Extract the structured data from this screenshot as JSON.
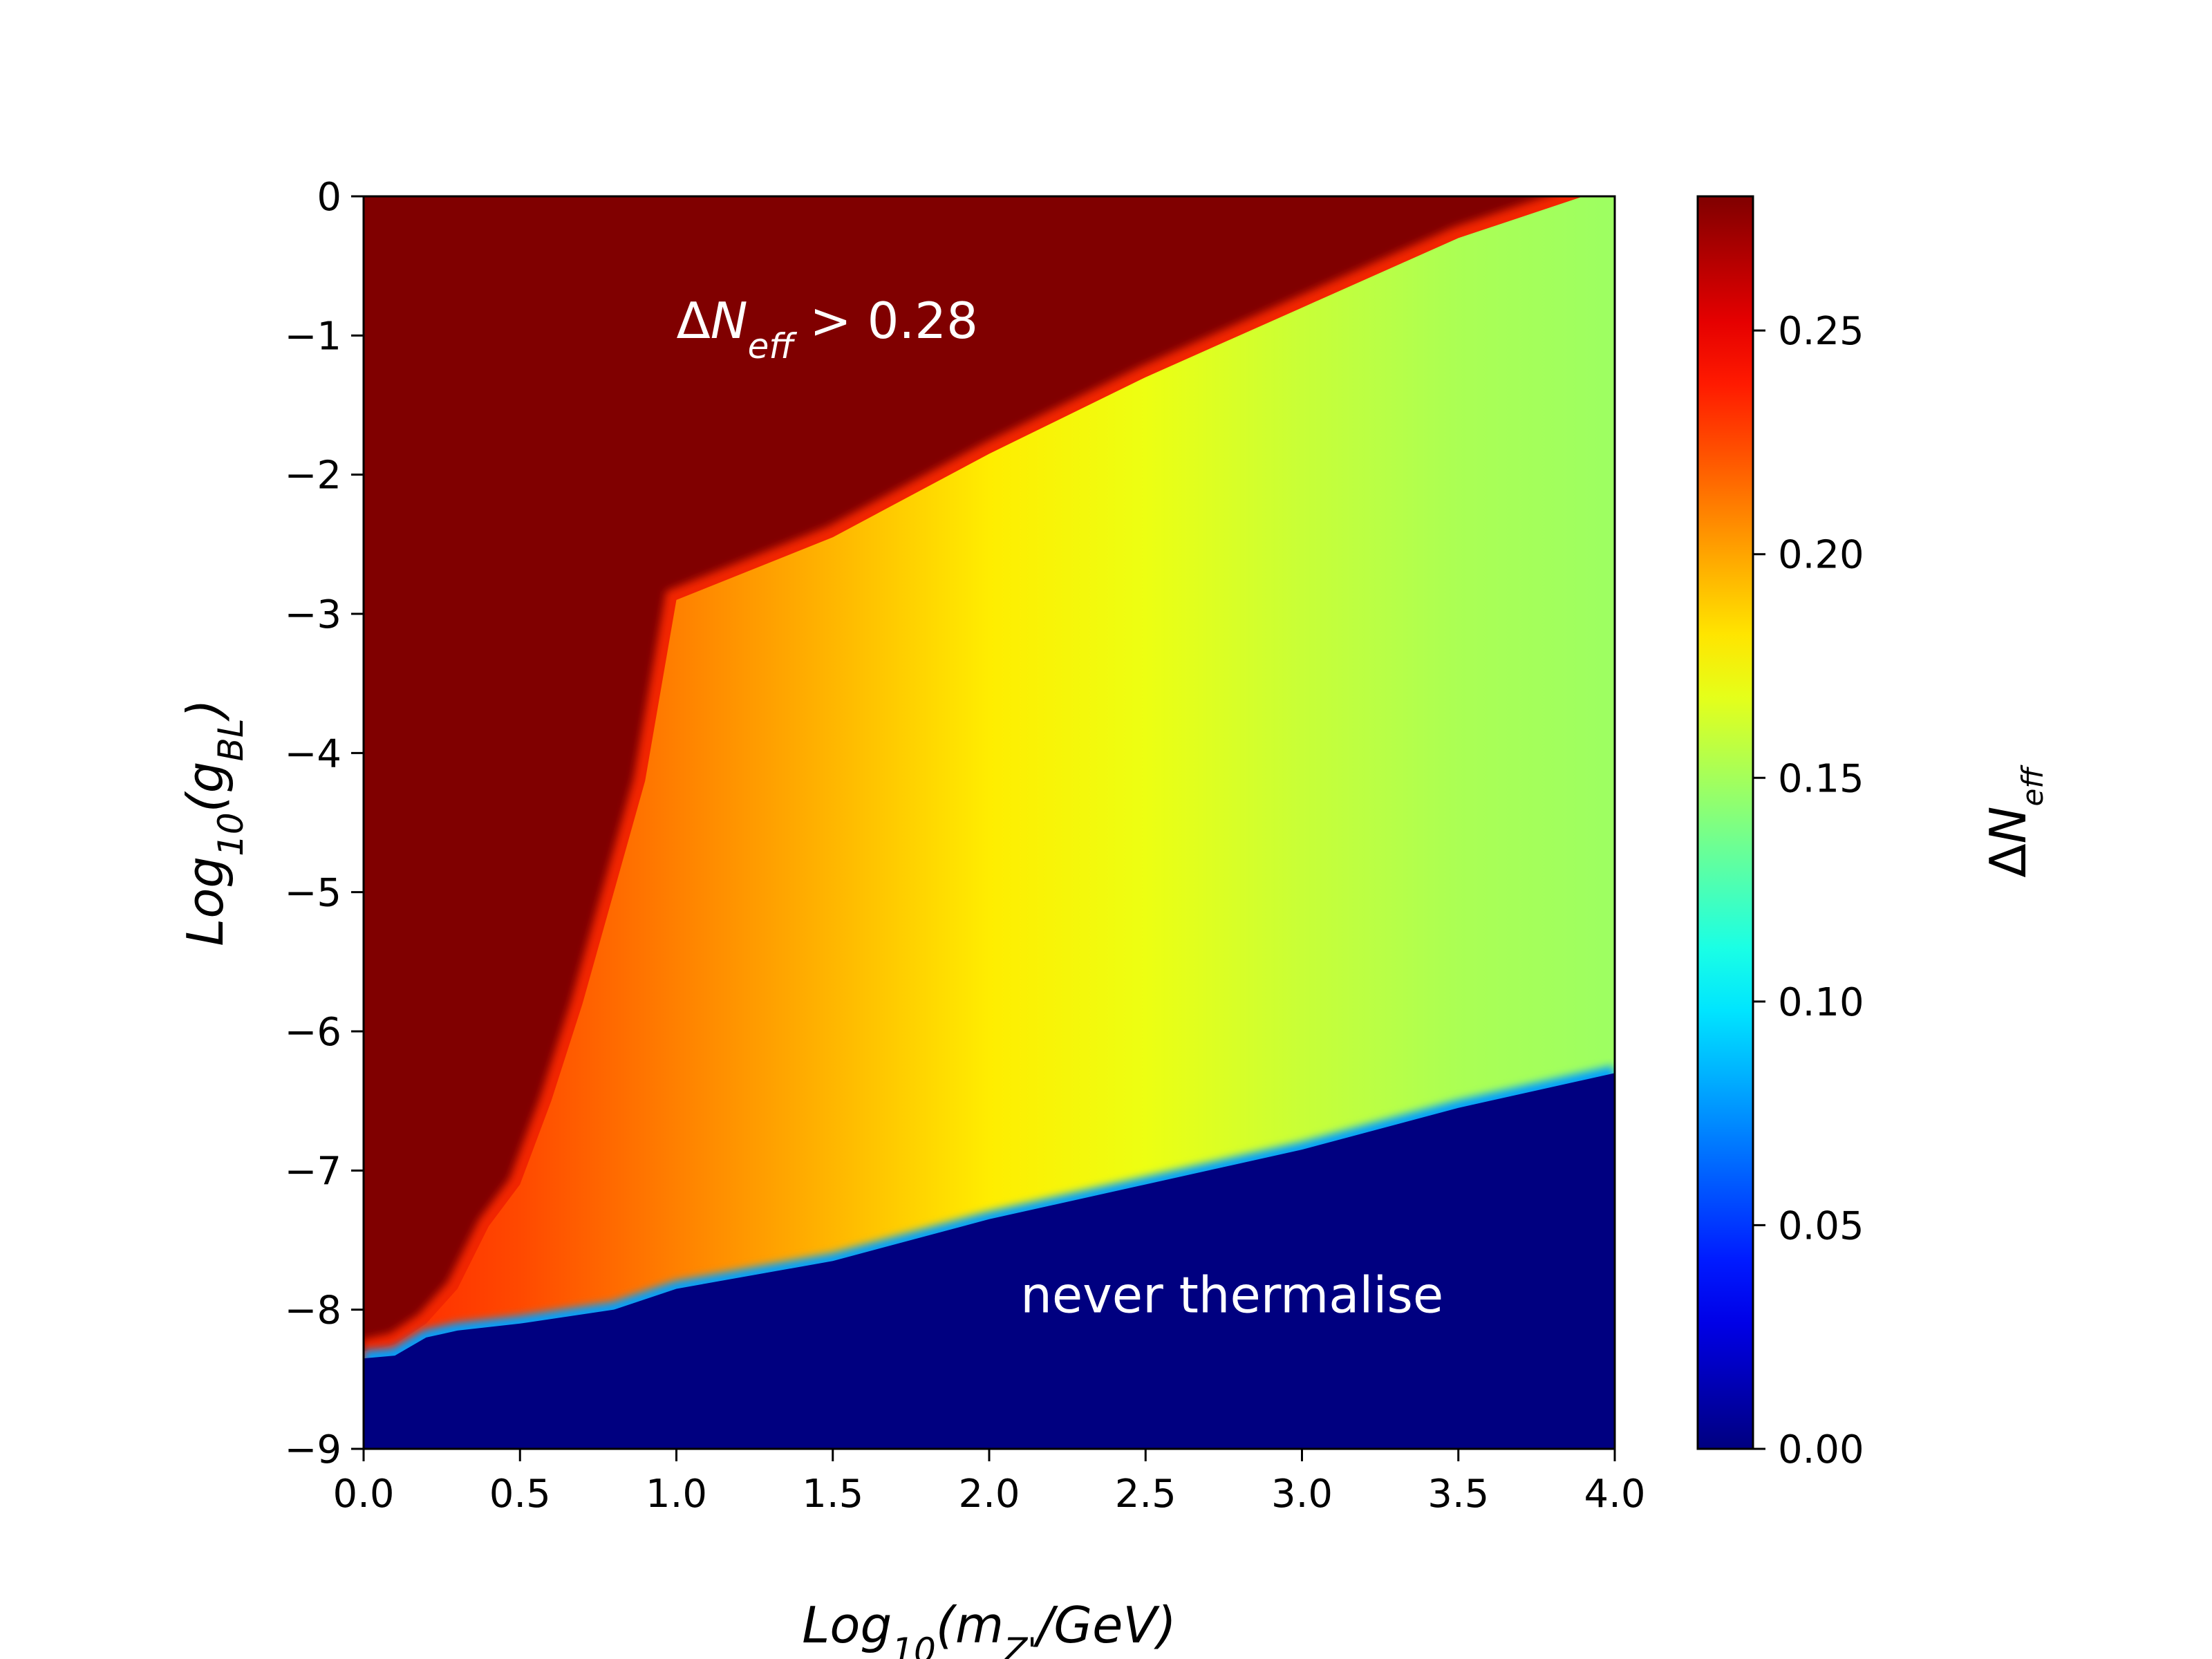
{
  "chart_data": {
    "type": "heatmap",
    "title": "",
    "xlabel": "Log10(mZ'/GeV)",
    "ylabel": "Log10(gBL)",
    "xlim": [
      0.0,
      4.0
    ],
    "ylim": [
      -9,
      0
    ],
    "x_ticks": [
      0.0,
      0.5,
      1.0,
      1.5,
      2.0,
      2.5,
      3.0,
      3.5,
      4.0
    ],
    "x_tick_labels": [
      "0.0",
      "0.5",
      "1.0",
      "1.5",
      "2.0",
      "2.5",
      "3.0",
      "3.5",
      "4.0"
    ],
    "y_ticks": [
      0,
      -1,
      -2,
      -3,
      -4,
      -5,
      -6,
      -7,
      -8,
      -9
    ],
    "y_tick_labels": [
      "0",
      "−1",
      "−2",
      "−3",
      "−4",
      "−5",
      "−6",
      "−7",
      "−8",
      "−9"
    ],
    "colormap": "jet",
    "colorbar": {
      "label": "ΔNeff",
      "range": [
        0.0,
        0.28
      ],
      "ticks": [
        0.0,
        0.05,
        0.1,
        0.15,
        0.2,
        0.25
      ],
      "tick_labels": [
        "0.00",
        "0.05",
        "0.10",
        "0.15",
        "0.20",
        "0.25"
      ]
    },
    "annotations": [
      {
        "text": "ΔNeff > 0.28",
        "x": 1.0,
        "y": -0.9
      },
      {
        "text": "never thermalise",
        "x": 2.1,
        "y": -7.9
      }
    ],
    "regions": {
      "upper_boundary": {
        "x": [
          0.0,
          0.1,
          0.2,
          0.3,
          0.4,
          0.5,
          0.6,
          0.7,
          0.8,
          0.9,
          1.0,
          1.5,
          2.0,
          2.5,
          3.0,
          3.5,
          3.9,
          4.0
        ],
        "y": [
          -8.3,
          -8.25,
          -8.1,
          -7.85,
          -7.4,
          -7.1,
          -6.5,
          -5.8,
          -5.0,
          -4.2,
          -2.9,
          -2.45,
          -1.85,
          -1.3,
          -0.8,
          -0.3,
          0.0,
          0.0
        ]
      },
      "lower_boundary": {
        "x": [
          0.0,
          0.1,
          0.2,
          0.3,
          0.5,
          0.8,
          1.0,
          1.5,
          2.0,
          2.5,
          3.0,
          3.5,
          4.0
        ],
        "y": [
          -8.35,
          -8.33,
          -8.2,
          -8.15,
          -8.1,
          -8.0,
          -7.85,
          -7.65,
          -7.35,
          -7.1,
          -6.85,
          -6.55,
          -6.3
        ]
      },
      "band_value_profile": {
        "x": [
          0.0,
          0.5,
          1.0,
          1.5,
          2.0,
          2.5,
          3.0,
          3.5,
          4.0
        ],
        "value": [
          0.235,
          0.225,
          0.21,
          0.195,
          0.18,
          0.17,
          0.16,
          0.152,
          0.148
        ]
      },
      "upper_region_value": 0.28,
      "lower_region_value": 0.0
    }
  }
}
